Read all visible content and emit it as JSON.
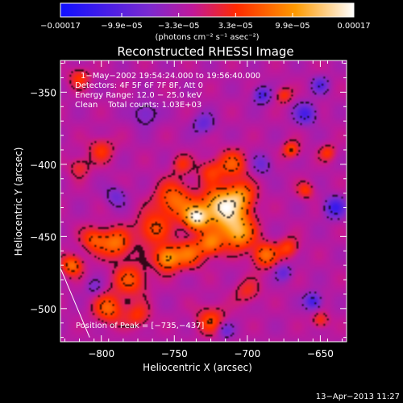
{
  "chart_data": {
    "type": "heatmap",
    "title": "Reconstructed RHESSI Image",
    "xlabel": "Heliocentric X (arcsec)",
    "ylabel": "Heliocentric Y (arcsec)",
    "xlim": [
      -828,
      -632
    ],
    "ylim": [
      -523,
      -328
    ],
    "x_ticks": [
      -800,
      -750,
      -700,
      -650
    ],
    "x_tick_labels": [
      "−800",
      "−750",
      "−700",
      "−650"
    ],
    "y_ticks": [
      -500,
      -450,
      -400,
      -350
    ],
    "y_tick_labels": [
      "−500",
      "−450",
      "−400",
      "−350"
    ],
    "colorbar": {
      "range": [
        -0.00017,
        0.00017
      ],
      "ticks": [
        -0.00017,
        -9.9e-05,
        -3.3e-05,
        3.3e-05,
        9.9e-05,
        0.00017
      ],
      "tick_labels": [
        "−0.00017",
        "−9.9e−05",
        "−3.3e−05",
        "3.3e−05",
        "9.9e−05",
        "0.00017"
      ],
      "units": "(photons cm⁻² s⁻¹ asec⁻²)",
      "colors": [
        "#1010ff",
        "#7a2ad0",
        "#c0189a",
        "#ff2a00",
        "#ff9a00",
        "#ffffff"
      ]
    },
    "annotations": [
      "1−May−2002 19:54:24.000 to 19:56:40.000",
      "Detectors: 4F 5F 6F 7F 8F, Att 0",
      "Energy Range: 12.0 − 25.0 keV",
      "Clean    Total counts: 1.03E+03"
    ],
    "peak_label": "Position of Peak = [−735,−437]",
    "peak": [
      -735,
      -437
    ],
    "sources": [
      {
        "x": -735,
        "y": -437,
        "amp": 0.00017,
        "sigma": 6
      },
      {
        "x": -720,
        "y": -428,
        "amp": 0.00014,
        "sigma": 8
      },
      {
        "x": -705,
        "y": -422,
        "amp": 0.00011,
        "sigma": 7
      },
      {
        "x": -710,
        "y": -440,
        "amp": 0.00012,
        "sigma": 9
      },
      {
        "x": -750,
        "y": -425,
        "amp": 0.0001,
        "sigma": 9
      },
      {
        "x": -765,
        "y": -445,
        "amp": 8e-05,
        "sigma": 8
      },
      {
        "x": -755,
        "y": -465,
        "amp": 0.00013,
        "sigma": 6
      },
      {
        "x": -740,
        "y": -462,
        "amp": 9e-05,
        "sigma": 7
      },
      {
        "x": -725,
        "y": -455,
        "amp": 0.0001,
        "sigma": 6
      },
      {
        "x": -705,
        "y": -450,
        "amp": 8e-05,
        "sigma": 7
      },
      {
        "x": -688,
        "y": -463,
        "amp": 0.0001,
        "sigma": 6
      },
      {
        "x": -672,
        "y": -458,
        "amp": 7e-05,
        "sigma": 5
      },
      {
        "x": -790,
        "y": -455,
        "amp": 0.0001,
        "sigma": 7
      },
      {
        "x": -805,
        "y": -452,
        "amp": 8e-05,
        "sigma": 6
      },
      {
        "x": -820,
        "y": -470,
        "amp": 0.0001,
        "sigma": 5
      },
      {
        "x": -780,
        "y": -480,
        "amp": 8e-05,
        "sigma": 8
      },
      {
        "x": -795,
        "y": -500,
        "amp": 9e-05,
        "sigma": 7
      },
      {
        "x": -775,
        "y": -505,
        "amp": 6e-05,
        "sigma": 6
      },
      {
        "x": -725,
        "y": -508,
        "amp": 7e-05,
        "sigma": 7
      },
      {
        "x": -700,
        "y": -488,
        "amp": 5e-05,
        "sigma": 6
      },
      {
        "x": -710,
        "y": -400,
        "amp": 8e-05,
        "sigma": 7
      },
      {
        "x": -725,
        "y": -405,
        "amp": 6e-05,
        "sigma": 6
      },
      {
        "x": -745,
        "y": -400,
        "amp": 5e-05,
        "sigma": 5
      },
      {
        "x": -800,
        "y": -390,
        "amp": 6e-05,
        "sigma": 6
      },
      {
        "x": -815,
        "y": -402,
        "amp": 5e-05,
        "sigma": 5
      },
      {
        "x": -670,
        "y": -390,
        "amp": 8e-05,
        "sigma": 4
      },
      {
        "x": -645,
        "y": -392,
        "amp": 6e-05,
        "sigma": 4
      },
      {
        "x": -660,
        "y": -418,
        "amp": 6e-05,
        "sigma": 4
      },
      {
        "x": -675,
        "y": -352,
        "amp": 6e-05,
        "sigma": 4
      },
      {
        "x": -815,
        "y": -340,
        "amp": 6e-05,
        "sigma": 5
      },
      {
        "x": -650,
        "y": -508,
        "amp": 6e-05,
        "sigma": 4
      },
      {
        "x": -770,
        "y": -365,
        "amp": -5e-05,
        "sigma": 6
      },
      {
        "x": -730,
        "y": -372,
        "amp": -6e-05,
        "sigma": 5
      },
      {
        "x": -690,
        "y": -352,
        "amp": -9e-05,
        "sigma": 4
      },
      {
        "x": -660,
        "y": -365,
        "amp": -9e-05,
        "sigma": 5
      },
      {
        "x": -650,
        "y": -345,
        "amp": -7e-05,
        "sigma": 4
      },
      {
        "x": -640,
        "y": -430,
        "amp": -0.0001,
        "sigma": 5
      },
      {
        "x": -690,
        "y": -400,
        "amp": -5e-05,
        "sigma": 5
      },
      {
        "x": -655,
        "y": -495,
        "amp": -0.0001,
        "sigma": 4
      },
      {
        "x": -675,
        "y": -475,
        "amp": -6e-05,
        "sigma": 4
      },
      {
        "x": -715,
        "y": -515,
        "amp": -6e-05,
        "sigma": 4
      },
      {
        "x": -790,
        "y": -422,
        "amp": -5e-05,
        "sigma": 5
      },
      {
        "x": -805,
        "y": -485,
        "amp": -4e-05,
        "sigma": 4
      }
    ],
    "limb_line": [
      [
        -828,
        -472
      ],
      [
        -808,
        -520
      ]
    ],
    "footer_date": "13−Apr−2013 11:27",
    "grid": false,
    "legend": "none"
  }
}
